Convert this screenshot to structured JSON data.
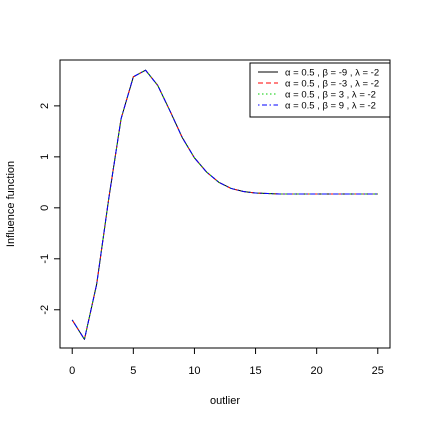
{
  "chart_data": {
    "type": "line",
    "title": "",
    "xlabel": "outlier",
    "ylabel": "Influence function",
    "xlim": [
      -1,
      26
    ],
    "ylim": [
      -2.75,
      2.9
    ],
    "xticks": [
      0,
      5,
      10,
      15,
      20,
      25
    ],
    "yticks": [
      -2,
      -1,
      0,
      1,
      2
    ],
    "xtick_labels": [
      "0",
      "5",
      "10",
      "15",
      "20",
      "25"
    ],
    "ytick_labels": [
      "-2",
      "-1",
      "0",
      "1",
      "2"
    ],
    "grid": false,
    "legend_position": "top-right",
    "x": [
      0,
      1,
      2,
      3,
      4,
      5,
      6,
      7,
      8,
      9,
      10,
      11,
      12,
      13,
      14,
      15,
      16,
      17,
      18,
      19,
      20,
      21,
      22,
      23,
      24,
      25
    ],
    "series": [
      {
        "name": "α = 0.5 ,  β = -9 ,  λ = -2",
        "color": "#000000",
        "dash": "solid",
        "values": [
          -2.2,
          -2.58,
          -1.5,
          0.2,
          1.75,
          2.57,
          2.7,
          2.4,
          1.9,
          1.38,
          0.98,
          0.7,
          0.5,
          0.38,
          0.32,
          0.29,
          0.28,
          0.27,
          0.27,
          0.27,
          0.27,
          0.27,
          0.27,
          0.27,
          0.27,
          0.27
        ]
      },
      {
        "name": "α = 0.5 ,  β = -3 ,  λ = -2",
        "color": "#ff0000",
        "dash": "dashed",
        "values": [
          -2.2,
          -2.58,
          -1.5,
          0.2,
          1.75,
          2.57,
          2.7,
          2.4,
          1.9,
          1.38,
          0.98,
          0.7,
          0.5,
          0.38,
          0.32,
          0.29,
          0.28,
          0.27,
          0.27,
          0.27,
          0.27,
          0.27,
          0.27,
          0.27,
          0.27,
          0.27
        ]
      },
      {
        "name": "α = 0.5 ,  β = 3 ,  λ = -2",
        "color": "#00cd00",
        "dash": "dotted",
        "values": [
          -2.2,
          -2.58,
          -1.5,
          0.2,
          1.75,
          2.57,
          2.7,
          2.4,
          1.9,
          1.38,
          0.98,
          0.7,
          0.5,
          0.38,
          0.32,
          0.29,
          0.28,
          0.27,
          0.27,
          0.27,
          0.27,
          0.27,
          0.27,
          0.27,
          0.27,
          0.27
        ]
      },
      {
        "name": "α = 0.5 ,  β = 9 ,  λ = -2",
        "color": "#0000ff",
        "dash": "dotdash",
        "values": [
          -2.2,
          -2.58,
          -1.5,
          0.2,
          1.75,
          2.57,
          2.7,
          2.4,
          1.9,
          1.38,
          0.98,
          0.7,
          0.5,
          0.38,
          0.32,
          0.29,
          0.28,
          0.27,
          0.27,
          0.27,
          0.27,
          0.27,
          0.27,
          0.27,
          0.27,
          0.27
        ]
      }
    ]
  }
}
